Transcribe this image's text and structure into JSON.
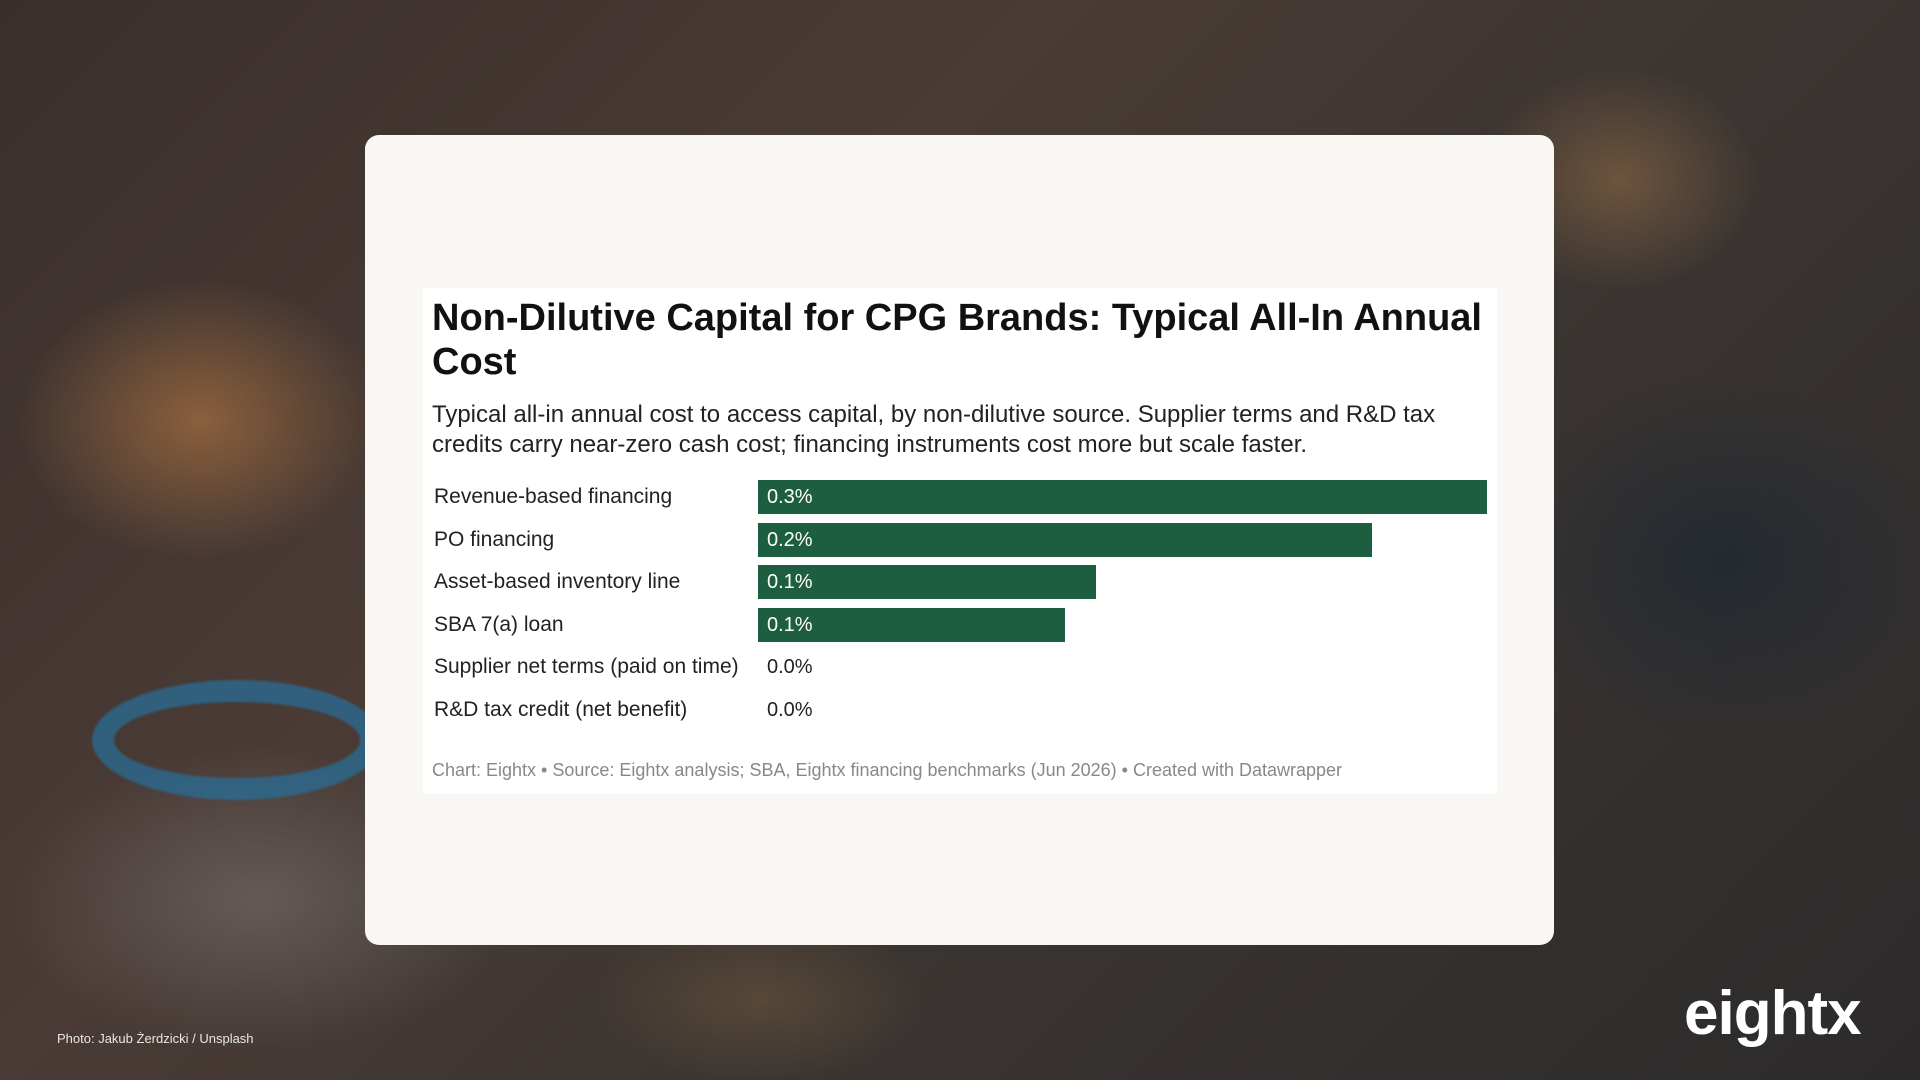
{
  "chart_data": {
    "type": "bar",
    "orientation": "horizontal",
    "title": "Non-Dilutive Capital for CPG Brands: Typical All-In Annual Cost",
    "subtitle": "Typical all-in annual cost to access capital, by non-dilutive source. Supplier terms and R&D tax credits carry near-zero cash cost; financing instruments cost more but scale faster.",
    "categories": [
      "Revenue-based financing",
      "PO financing",
      "Asset-based inventory line",
      "SBA 7(a) loan",
      "Supplier net terms (paid on time)",
      "R&D tax credit (net benefit)"
    ],
    "values": [
      0.28,
      0.236,
      0.13,
      0.118,
      0.0,
      0.0
    ],
    "labels": [
      "0.3%",
      "0.2%",
      "0.1%",
      "0.1%",
      "0.0%",
      "0.0%"
    ],
    "bar_color": "#1d5e41",
    "grid": false,
    "footer": "Chart: Eightx • Source: Eightx analysis; SBA, Eightx financing benchmarks (Jun 2026) • Created with Datawrapper"
  },
  "photo_credit": "Photo: Jakub Żerdzicki / Unsplash",
  "brand": {
    "logo_text": "eightx"
  }
}
